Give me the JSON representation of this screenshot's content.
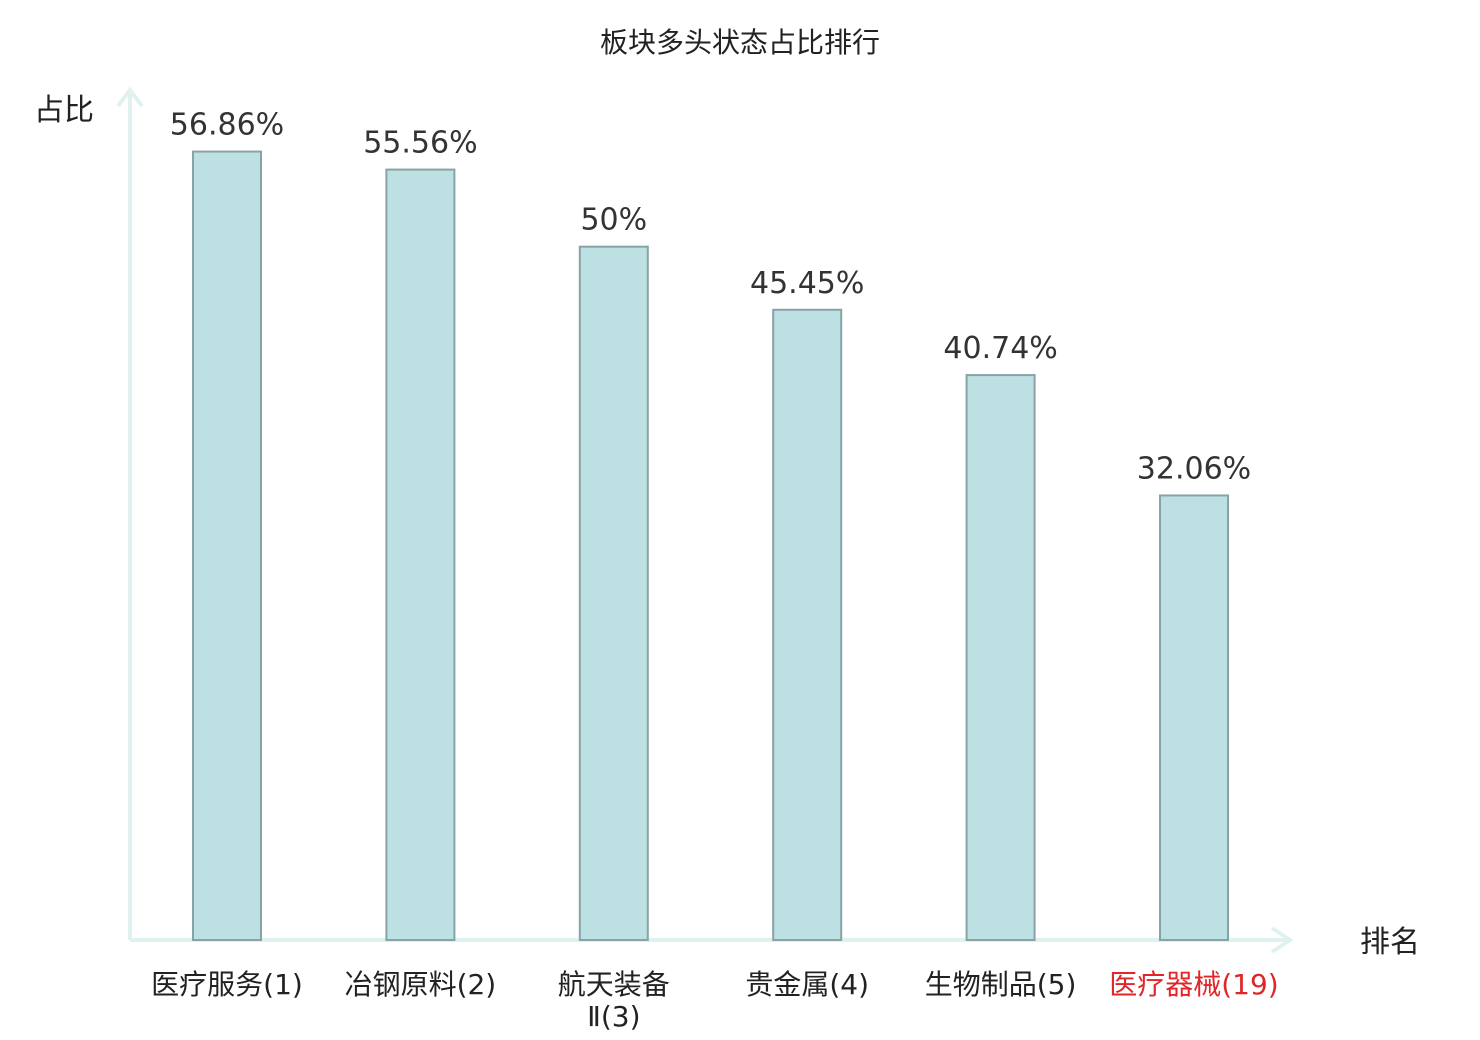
{
  "chart_data": {
    "type": "bar",
    "title": "板块多头状态占比排行",
    "ylabel": "占比",
    "xlabel": "排名",
    "categories": [
      {
        "name_lines": [
          "医疗服务(1)"
        ],
        "highlight": false
      },
      {
        "name_lines": [
          "冶钢原料(2)"
        ],
        "highlight": false
      },
      {
        "name_lines": [
          "航天装备",
          "Ⅱ(3)"
        ],
        "highlight": false
      },
      {
        "name_lines": [
          "贵金属(4)"
        ],
        "highlight": false
      },
      {
        "name_lines": [
          "生物制品(5)"
        ],
        "highlight": false
      },
      {
        "name_lines": [
          "医疗器械(19)"
        ],
        "highlight": true
      }
    ],
    "values": [
      56.86,
      55.56,
      50,
      45.45,
      40.74,
      32.06
    ],
    "value_labels": [
      "56.86%",
      "55.56%",
      "50%",
      "45.45%",
      "40.74%",
      "32.06%"
    ],
    "ylim": [
      0,
      61.3
    ],
    "grid": false,
    "legend": "none",
    "colors": {
      "bar_fill": "#bde0e3",
      "bar_stroke": "#88a3a6",
      "axis": "#e0f2ef",
      "text": "#222222",
      "highlight": "#e0262b"
    }
  }
}
